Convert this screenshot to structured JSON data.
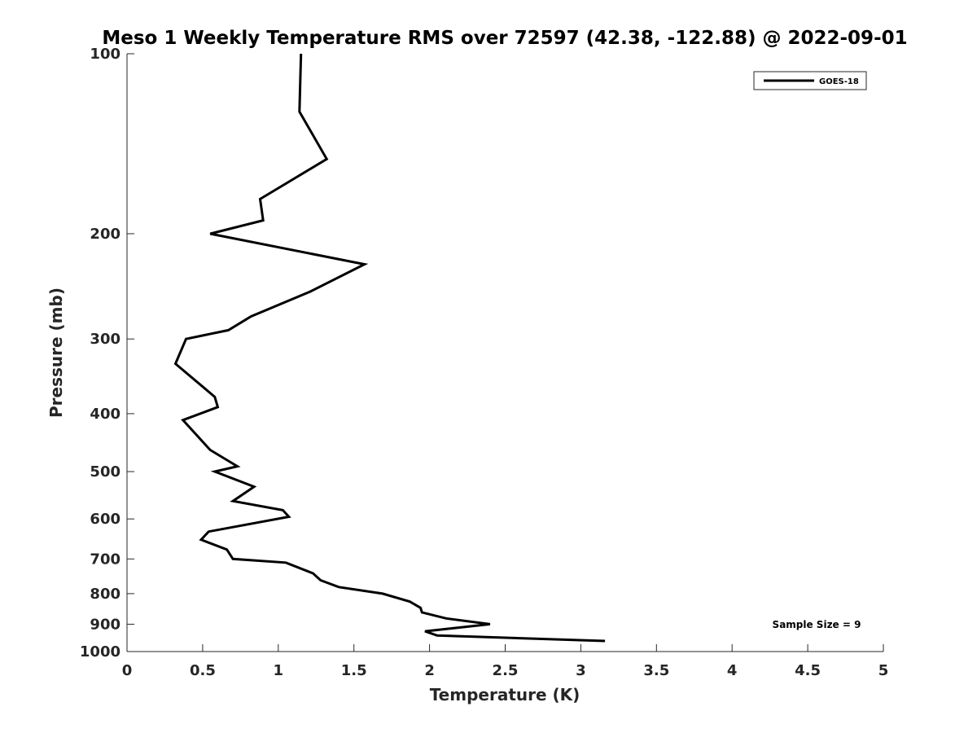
{
  "chart_data": {
    "type": "line",
    "title": "Meso 1 Weekly Temperature RMS over 72597 (42.38, -122.88) @ 2022-09-01",
    "xlabel": "Temperature (K)",
    "ylabel": "Pressure (mb)",
    "xlim": [
      0,
      5
    ],
    "ylim": [
      100,
      1000
    ],
    "y_scale": "log",
    "y_reversed": true,
    "x_ticks": [
      "0",
      "0.5",
      "1",
      "1.5",
      "2",
      "2.5",
      "3",
      "3.5",
      "4",
      "4.5",
      "5"
    ],
    "y_ticks": [
      "100",
      "200",
      "300",
      "400",
      "500",
      "600",
      "700",
      "800",
      "900",
      "1000"
    ],
    "grid": false,
    "legend_position": "top-right",
    "annotation": "Sample Size = 9",
    "series": [
      {
        "name": "GOES-18",
        "color": "#000000",
        "points": [
          [
            1.15,
            100
          ],
          [
            1.14,
            125
          ],
          [
            1.32,
            150
          ],
          [
            0.88,
            175
          ],
          [
            0.9,
            190
          ],
          [
            0.55,
            200
          ],
          [
            1.57,
            225
          ],
          [
            1.21,
            250
          ],
          [
            0.82,
            275
          ],
          [
            0.67,
            290
          ],
          [
            0.39,
            300
          ],
          [
            0.32,
            330
          ],
          [
            0.58,
            375
          ],
          [
            0.6,
            390
          ],
          [
            0.37,
            410
          ],
          [
            0.48,
            440
          ],
          [
            0.55,
            460
          ],
          [
            0.73,
            490
          ],
          [
            0.58,
            500
          ],
          [
            0.84,
            530
          ],
          [
            0.7,
            560
          ],
          [
            1.03,
            580
          ],
          [
            1.07,
            595
          ],
          [
            0.54,
            630
          ],
          [
            0.49,
            650
          ],
          [
            0.66,
            675
          ],
          [
            0.7,
            700
          ],
          [
            1.05,
            710
          ],
          [
            1.23,
            740
          ],
          [
            1.28,
            760
          ],
          [
            1.4,
            780
          ],
          [
            1.69,
            800
          ],
          [
            1.87,
            825
          ],
          [
            1.94,
            845
          ],
          [
            1.95,
            860
          ],
          [
            2.11,
            880
          ],
          [
            2.4,
            900
          ],
          [
            1.97,
            925
          ],
          [
            2.05,
            940
          ],
          [
            3.16,
            960
          ]
        ]
      }
    ]
  }
}
